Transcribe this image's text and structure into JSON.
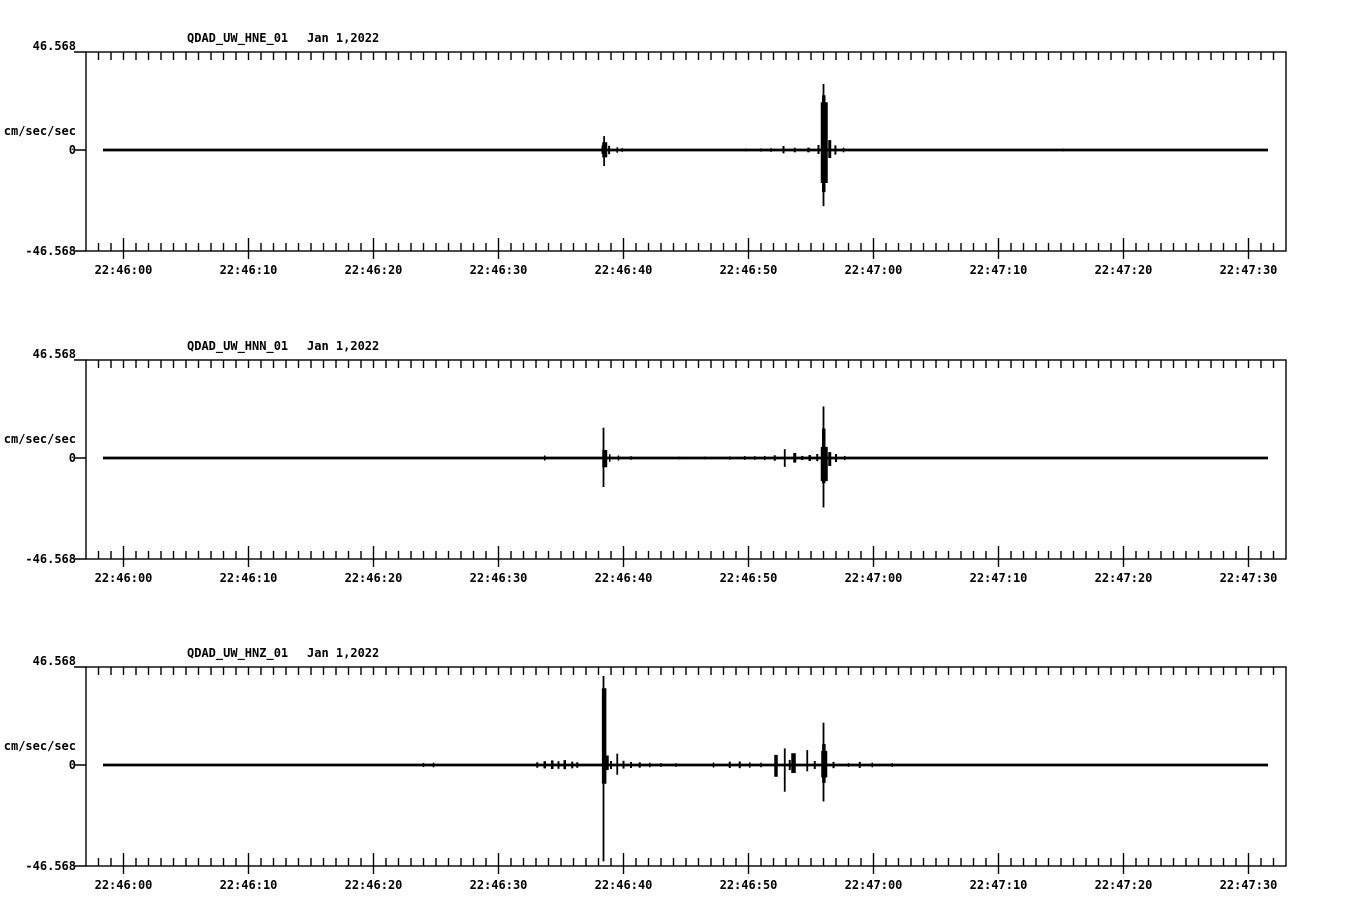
{
  "colors": {
    "background": "#ffffff",
    "ink": "#000000"
  },
  "spike_format": [
    "t_sec_after_t0",
    "amp_up_cm_s2",
    "amp_down_cm_s2",
    "width_px"
  ],
  "chart_data": [
    {
      "type": "line",
      "kind": "seismogram-trace",
      "title": "QDAD_UW_HNE_01",
      "date_label": "Jan 1,2022",
      "channel": "HNE",
      "ylabel": "cm/sec/sec",
      "ylim": [
        -46.568,
        46.568
      ],
      "ytick_labels": {
        "top": "46.568",
        "zero": "0",
        "bottom": "-46.568"
      },
      "t0_label": "22:46:00",
      "x_window_sec_rel_t0": [
        -3,
        93
      ],
      "x_minor_interval_sec": 1,
      "x_major_interval_sec": 10,
      "x_major_labels": [
        "22:46:00",
        "22:46:10",
        "22:46:20",
        "22:46:30",
        "22:46:40",
        "22:46:50",
        "22:47:00",
        "22:47:10",
        "22:47:20",
        "22:47:30"
      ],
      "trace_span_sec": [
        -1.64,
        91.56
      ],
      "baseline_value": 0,
      "spikes": [
        [
          38.3,
          2.1,
          1.9,
          1.5
        ],
        [
          38.45,
          6.6,
          7.6,
          1.8
        ],
        [
          38.5,
          3.7,
          3.5,
          5
        ],
        [
          38.85,
          2.0,
          2.0,
          2
        ],
        [
          39.5,
          1.3,
          1.3,
          1.5
        ],
        [
          39.9,
          0.9,
          0.9,
          1.5
        ],
        [
          49.8,
          0.7,
          0.7,
          1.5
        ],
        [
          51.0,
          0.8,
          0.8,
          1.5
        ],
        [
          51.8,
          0.9,
          0.9,
          1.5
        ],
        [
          52.8,
          1.9,
          1.6,
          2
        ],
        [
          53.7,
          1.1,
          1.1,
          2
        ],
        [
          54.8,
          1.1,
          1.1,
          2.5
        ],
        [
          55.6,
          2.4,
          1.9,
          2
        ],
        [
          56.0,
          31.4,
          26.7,
          1.8
        ],
        [
          56.02,
          26.0,
          20.0,
          3.5
        ],
        [
          56.06,
          22.7,
          15.7,
          7
        ],
        [
          56.5,
          4.7,
          3.8,
          3
        ],
        [
          56.95,
          2.2,
          2.2,
          2
        ],
        [
          57.6,
          1.1,
          1.1,
          1.5
        ],
        [
          75.2,
          0.7,
          0.7,
          1.5
        ]
      ]
    },
    {
      "type": "line",
      "kind": "seismogram-trace",
      "title": "QDAD_UW_HNN_01",
      "date_label": "Jan 1,2022",
      "channel": "HNN",
      "ylabel": "cm/sec/sec",
      "ylim": [
        -46.568,
        46.568
      ],
      "ytick_labels": {
        "top": "46.568",
        "zero": "0",
        "bottom": "-46.568"
      },
      "t0_label": "22:46:00",
      "x_window_sec_rel_t0": [
        -3,
        93
      ],
      "x_minor_interval_sec": 1,
      "x_major_interval_sec": 10,
      "x_major_labels": [
        "22:46:00",
        "22:46:10",
        "22:46:20",
        "22:46:30",
        "22:46:40",
        "22:46:50",
        "22:47:00",
        "22:47:10",
        "22:47:20",
        "22:47:30"
      ],
      "trace_span_sec": [
        -1.64,
        91.56
      ],
      "baseline_value": 0,
      "spikes": [
        [
          33.7,
          1.2,
          1.2,
          1.5
        ],
        [
          38.4,
          14.4,
          13.8,
          1.8
        ],
        [
          38.5,
          3.8,
          4.4,
          5
        ],
        [
          38.9,
          1.8,
          1.8,
          1.5
        ],
        [
          39.6,
          1.2,
          1.2,
          1.5
        ],
        [
          40.6,
          0.9,
          0.9,
          1.5
        ],
        [
          44.5,
          0.7,
          0.7,
          1.5
        ],
        [
          46.5,
          0.7,
          0.7,
          1.5
        ],
        [
          48.5,
          0.8,
          0.8,
          1.5
        ],
        [
          49.7,
          0.9,
          0.9,
          1.5
        ],
        [
          50.5,
          0.9,
          0.9,
          1.5
        ],
        [
          51.3,
          1.0,
          1.0,
          1.5
        ],
        [
          52.1,
          1.3,
          1.3,
          2
        ],
        [
          52.9,
          4.2,
          4.2,
          1.8
        ],
        [
          53.7,
          2.4,
          2.2,
          3
        ],
        [
          54.3,
          1.0,
          1.0,
          2
        ],
        [
          54.9,
          1.4,
          1.4,
          2.5
        ],
        [
          55.5,
          1.9,
          1.5,
          2
        ],
        [
          56.0,
          24.5,
          23.5,
          1.8
        ],
        [
          56.02,
          14.0,
          12.0,
          3.5
        ],
        [
          56.06,
          5.3,
          11.0,
          7
        ],
        [
          56.5,
          2.8,
          3.8,
          3
        ],
        [
          57.0,
          1.9,
          1.9,
          2
        ],
        [
          57.7,
          1.0,
          1.0,
          1.5
        ]
      ]
    },
    {
      "type": "line",
      "kind": "seismogram-trace",
      "title": "QDAD_UW_HNZ_01",
      "date_label": "Jan 1,2022",
      "channel": "HNZ",
      "ylabel": "cm/sec/sec",
      "ylim": [
        -46.568,
        46.568
      ],
      "ytick_labels": {
        "top": "46.568",
        "zero": "0",
        "bottom": "-46.568"
      },
      "t0_label": "22:46:00",
      "x_window_sec_rel_t0": [
        -3,
        93
      ],
      "x_minor_interval_sec": 1,
      "x_major_interval_sec": 10,
      "x_major_labels": [
        "22:46:00",
        "22:46:10",
        "22:46:20",
        "22:46:30",
        "22:46:40",
        "22:46:50",
        "22:47:00",
        "22:47:10",
        "22:47:20",
        "22:47:30"
      ],
      "trace_span_sec": [
        -1.64,
        91.56
      ],
      "baseline_value": 0,
      "spikes": [
        [
          24.0,
          1.0,
          1.0,
          1.5
        ],
        [
          24.8,
          1.1,
          1.1,
          1.5
        ],
        [
          33.1,
          1.3,
          1.3,
          2
        ],
        [
          33.7,
          1.8,
          1.6,
          2.5
        ],
        [
          34.3,
          2.2,
          1.9,
          2.5
        ],
        [
          34.8,
          1.8,
          1.8,
          2
        ],
        [
          35.3,
          2.3,
          2.0,
          2.5
        ],
        [
          35.9,
          1.6,
          1.6,
          2
        ],
        [
          36.3,
          1.3,
          1.3,
          2
        ],
        [
          38.4,
          42.3,
          45.8,
          1.8
        ],
        [
          38.45,
          36.5,
          8.9,
          4.5
        ],
        [
          38.7,
          4.5,
          2.4,
          3
        ],
        [
          39.0,
          1.9,
          1.9,
          2
        ],
        [
          39.5,
          5.4,
          4.6,
          1.8
        ],
        [
          40.0,
          2.0,
          1.7,
          2
        ],
        [
          40.6,
          1.4,
          1.4,
          2
        ],
        [
          41.3,
          1.3,
          1.3,
          2
        ],
        [
          42.1,
          1.1,
          1.1,
          1.5
        ],
        [
          43.0,
          0.9,
          0.9,
          1.5
        ],
        [
          44.2,
          0.9,
          0.9,
          1.5
        ],
        [
          47.2,
          1.2,
          1.2,
          1.5
        ],
        [
          48.5,
          1.6,
          1.4,
          2
        ],
        [
          49.3,
          1.7,
          1.5,
          2
        ],
        [
          50.1,
          1.3,
          1.3,
          1.5
        ],
        [
          51.0,
          1.1,
          1.1,
          1.5
        ],
        [
          52.2,
          4.8,
          5.6,
          3.5
        ],
        [
          52.9,
          7.9,
          12.7,
          1.8
        ],
        [
          53.3,
          2.4,
          2.4,
          2
        ],
        [
          53.6,
          5.6,
          3.8,
          4.5
        ],
        [
          54.7,
          7.1,
          3.0,
          1.8
        ],
        [
          55.3,
          1.9,
          1.9,
          2
        ],
        [
          56.0,
          20.1,
          17.3,
          1.8
        ],
        [
          56.03,
          10.0,
          8.5,
          3.5
        ],
        [
          56.06,
          6.7,
          5.9,
          6
        ],
        [
          56.8,
          1.5,
          1.5,
          2
        ],
        [
          58.0,
          0.9,
          0.9,
          1.5
        ],
        [
          58.9,
          1.5,
          1.4,
          2
        ],
        [
          59.9,
          1.1,
          1.1,
          1.5
        ],
        [
          61.5,
          0.9,
          0.9,
          1.5
        ]
      ]
    }
  ]
}
